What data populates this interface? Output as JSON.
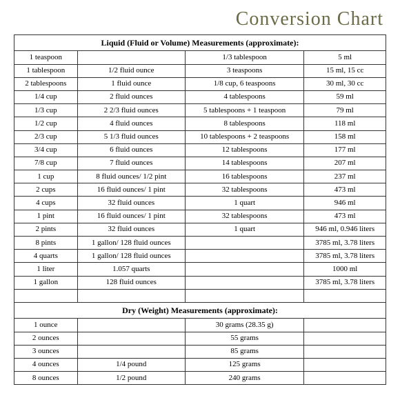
{
  "title": "Conversion Chart",
  "liquid": {
    "header": "Liquid (Fluid or Volume) Measurements (approximate):",
    "rows": [
      {
        "c1": "1 teaspoon",
        "c2": "",
        "c3": "1/3 tablespoon",
        "c4": "5 ml"
      },
      {
        "c1": "1 tablespoon",
        "c2": "1/2 fluid ounce",
        "c3": "3 teaspoons",
        "c4": "15 ml, 15 cc"
      },
      {
        "c1": "2 tablespoons",
        "c2": "1 fluid ounce",
        "c3": "1/8 cup, 6 teaspoons",
        "c4": "30 ml, 30 cc"
      },
      {
        "c1": "1/4 cup",
        "c2": "2 fluid ounces",
        "c3": "4 tablespoons",
        "c4": "59 ml"
      },
      {
        "c1": "1/3 cup",
        "c2": "2 2/3 fluid ounces",
        "c3": "5 tablespoons + 1 teaspoon",
        "c4": "79 ml"
      },
      {
        "c1": "1/2 cup",
        "c2": "4 fluid ounces",
        "c3": "8 tablespoons",
        "c4": "118 ml"
      },
      {
        "c1": "2/3 cup",
        "c2": "5 1/3 fluid ounces",
        "c3": "10 tablespoons + 2 teaspoons",
        "c4": "158 ml"
      },
      {
        "c1": "3/4 cup",
        "c2": "6 fluid ounces",
        "c3": "12 tablespoons",
        "c4": "177 ml"
      },
      {
        "c1": "7/8 cup",
        "c2": "7 fluid ounces",
        "c3": "14 tablespoons",
        "c4": "207 ml"
      },
      {
        "c1": "1 cup",
        "c2": "8 fluid ounces/ 1/2 pint",
        "c3": "16 tablespoons",
        "c4": "237 ml"
      },
      {
        "c1": "2 cups",
        "c2": "16 fluid ounces/ 1 pint",
        "c3": "32 tablespoons",
        "c4": "473 ml"
      },
      {
        "c1": "4 cups",
        "c2": "32 fluid ounces",
        "c3": "1 quart",
        "c4": "946 ml"
      },
      {
        "c1": "1 pint",
        "c2": "16 fluid ounces/ 1 pint",
        "c3": "32 tablespoons",
        "c4": "473 ml"
      },
      {
        "c1": "2 pints",
        "c2": "32 fluid ounces",
        "c3": "1 quart",
        "c4": "946 ml,  0.946 liters"
      },
      {
        "c1": "8 pints",
        "c2": "1 gallon/ 128 fluid ounces",
        "c3": "",
        "c4": "3785 ml,  3.78 liters"
      },
      {
        "c1": "4 quarts",
        "c2": "1 gallon/ 128 fluid ounces",
        "c3": "",
        "c4": "3785 ml,  3.78 liters"
      },
      {
        "c1": "1 liter",
        "c2": "1.057 quarts",
        "c3": "",
        "c4": "1000 ml"
      },
      {
        "c1": "1 gallon",
        "c2": "128 fluid ounces",
        "c3": "",
        "c4": "3785 ml,  3.78 liters"
      }
    ]
  },
  "dry": {
    "header": "Dry (Weight) Measurements (approximate):",
    "rows": [
      {
        "c1": "1 ounce",
        "c2": "",
        "c3": "30 grams  (28.35 g)",
        "c4": ""
      },
      {
        "c1": "2 ounces",
        "c2": "",
        "c3": "55 grams",
        "c4": ""
      },
      {
        "c1": "3 ounces",
        "c2": "",
        "c3": "85 grams",
        "c4": ""
      },
      {
        "c1": "4 ounces",
        "c2": "1/4 pound",
        "c3": "125 grams",
        "c4": ""
      },
      {
        "c1": "8 ounces",
        "c2": "1/2 pound",
        "c3": "240 grams",
        "c4": ""
      }
    ]
  },
  "styling": {
    "title_color": "#6b6b47",
    "title_fontsize": 28,
    "border_color": "#333333",
    "background": "#ffffff",
    "body_fontsize": 11,
    "header_fontsize": 12,
    "font_family": "Times New Roman",
    "col_widths_pct": [
      17,
      29,
      32,
      22
    ]
  }
}
